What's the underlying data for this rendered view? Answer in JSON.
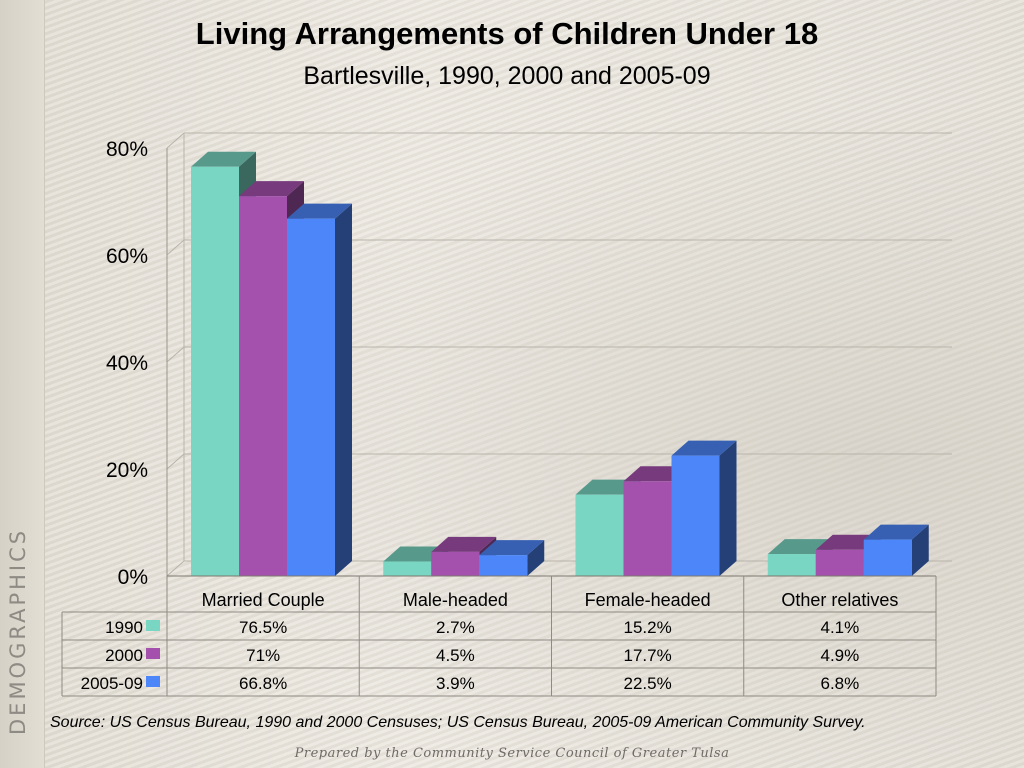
{
  "side_label": "DEMOGRAPHICS",
  "footer": "Prepared by the Community Service Council of Greater Tulsa",
  "source": "Source:  US Census Bureau, 1990 and 2000 Censuses; US Census Bureau, 2005-09 American Community Survey.",
  "chart_data": {
    "type": "bar",
    "title": "Living Arrangements of Children Under 18",
    "subtitle": "Bartlesville, 1990, 2000 and 2005-09",
    "categories": [
      "Married Couple",
      "Male-headed",
      "Female-headed",
      "Other relatives"
    ],
    "series": [
      {
        "name": "1990",
        "values": [
          76.5,
          2.7,
          15.2,
          4.1
        ],
        "labels": [
          "76.5%",
          "2.7%",
          "15.2%",
          "4.1%"
        ],
        "color": "#79d6c3"
      },
      {
        "name": "2000",
        "values": [
          71,
          4.5,
          17.7,
          4.9
        ],
        "labels": [
          "71%",
          "4.5%",
          "17.7%",
          "4.9%"
        ],
        "color": "#a451ad"
      },
      {
        "name": "2005-09",
        "values": [
          66.8,
          3.9,
          22.5,
          6.8
        ],
        "labels": [
          "66.8%",
          "3.9%",
          "22.5%",
          "6.8%"
        ],
        "color": "#4c86f8"
      }
    ],
    "y_ticks": [
      "0%",
      "20%",
      "40%",
      "60%",
      "80%"
    ],
    "ylim": [
      0,
      80
    ],
    "grid": true,
    "legend": "data-table",
    "style": "3d-clustered-column"
  }
}
